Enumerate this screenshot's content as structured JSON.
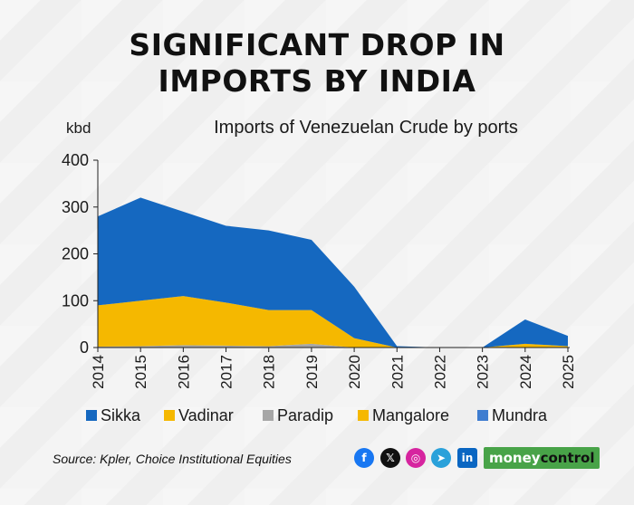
{
  "header": {
    "title_line1": "SIGNIFICANT DROP IN",
    "title_line2": "IMPORTS BY INDIA"
  },
  "footer": {
    "source": "Source: Kpler, Choice Institutional Equities",
    "brand_part1": "money",
    "brand_part2": "control"
  },
  "social_icons": [
    "facebook-icon",
    "x-icon",
    "instagram-icon",
    "telegram-icon",
    "linkedin-icon"
  ],
  "colors": {
    "sikka": "#1568c0",
    "vadinar": "#f5b800",
    "paradip": "#a6a6a6",
    "mangalore": "#f5b800",
    "mundra": "#3f7dd0"
  },
  "chart_data": {
    "type": "area",
    "stacked": true,
    "title": "Imports of Venezuelan Crude by ports",
    "ylabel": "kbd",
    "xlabel": "",
    "ylim": [
      0,
      400
    ],
    "yticks": [
      0,
      100,
      200,
      300,
      400
    ],
    "categories": [
      "2014",
      "2015",
      "2016",
      "2017",
      "2018",
      "2019",
      "2020",
      "2021",
      "2022",
      "2023",
      "2024",
      "2025"
    ],
    "series": [
      {
        "name": "Mundra",
        "values": [
          0,
          0,
          0,
          0,
          0,
          0,
          0,
          0,
          0,
          0,
          0,
          0
        ]
      },
      {
        "name": "Mangalore",
        "values": [
          0,
          0,
          0,
          0,
          0,
          0,
          0,
          0,
          0,
          0,
          0,
          0
        ]
      },
      {
        "name": "Paradip",
        "values": [
          2,
          3,
          5,
          4,
          3,
          8,
          0,
          0,
          0,
          0,
          0,
          0
        ]
      },
      {
        "name": "Vadinar",
        "values": [
          88,
          97,
          105,
          92,
          77,
          72,
          20,
          0,
          0,
          0,
          8,
          3
        ]
      },
      {
        "name": "Sikka",
        "values": [
          190,
          220,
          180,
          164,
          170,
          150,
          110,
          3,
          0,
          0,
          52,
          22
        ]
      }
    ],
    "legend": [
      "Sikka",
      "Vadinar",
      "Paradip",
      "Mangalore",
      "Mundra"
    ],
    "legend_position": "bottom"
  }
}
